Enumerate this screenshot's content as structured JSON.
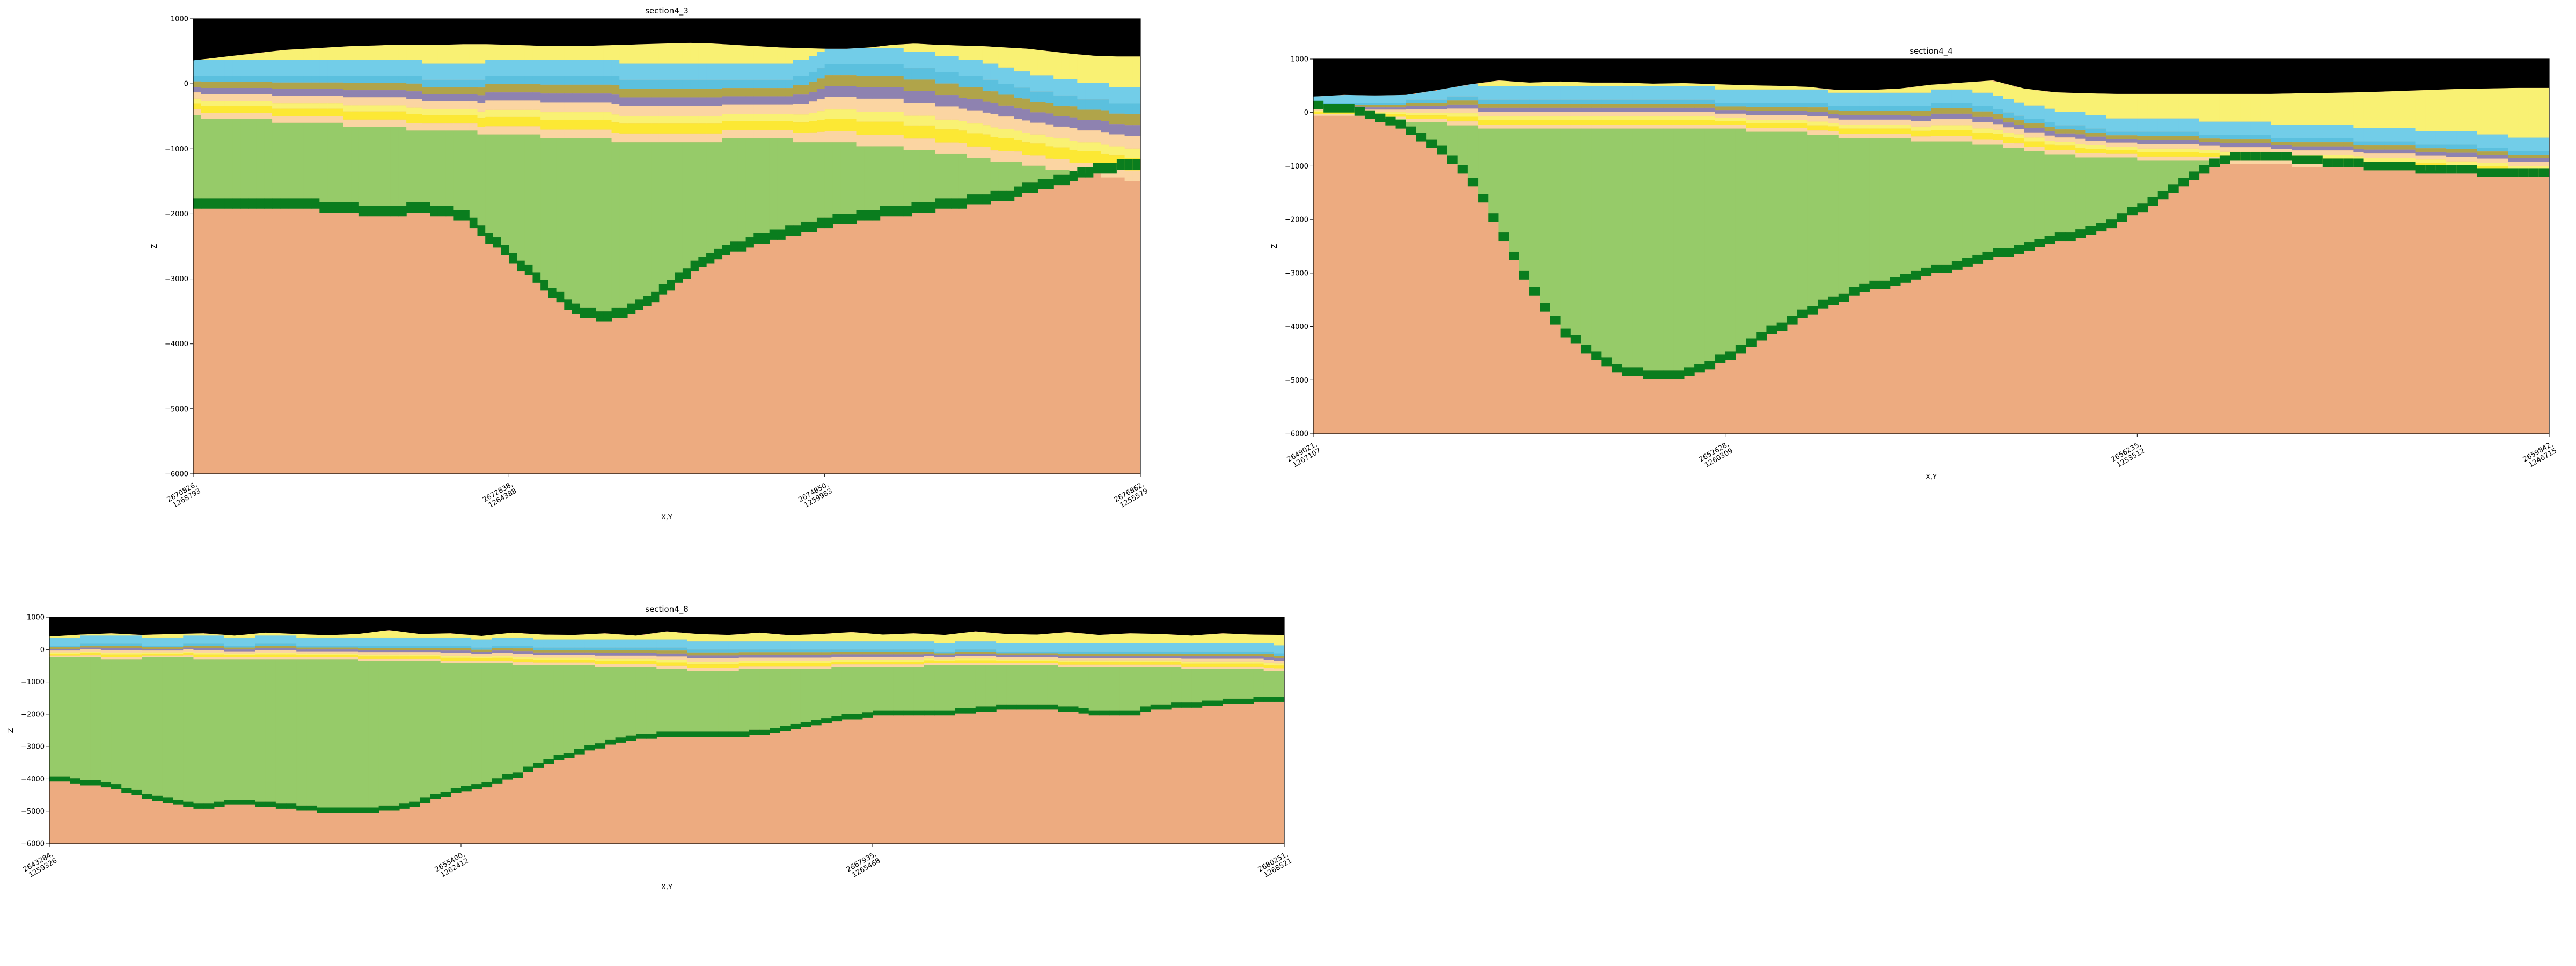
{
  "chart_data": [
    {
      "type": "heatmap",
      "title": "section4_3",
      "xlabel": "X,Y",
      "ylabel": "Z",
      "ylim": [
        -6000,
        1000
      ],
      "yticks": [
        1000,
        0,
        -1000,
        -2000,
        -3000,
        -4000,
        -5000,
        -6000
      ],
      "xtick_labels": [
        "2670826,\n1268793",
        "2672838,\n1264388",
        "2674850,\n1259983",
        "2676862,\n1255579"
      ],
      "profile_z": {
        "topography": [
          360,
          400,
          440,
          480,
          520,
          540,
          560,
          580,
          590,
          600,
          600,
          600,
          610,
          610,
          600,
          590,
          580,
          580,
          590,
          600,
          610,
          620,
          630,
          620,
          600,
          580,
          560,
          550,
          540,
          540,
          560,
          600,
          620,
          600,
          590,
          580,
          560,
          540,
          500,
          460,
          430,
          420,
          420
        ],
        "light_blue_bottom": [
          100,
          110,
          120,
          130,
          140,
          140,
          130,
          120,
          110,
          100,
          90,
          80,
          80,
          90,
          100,
          110,
          120,
          110,
          100,
          90,
          80,
          70,
          60,
          60,
          60,
          70,
          80,
          100,
          300,
          300,
          300,
          280,
          250,
          200,
          150,
          80,
          0,
          -80,
          -150,
          -200,
          -250,
          -280,
          -300
        ],
        "green_top": [
          -500,
          -520,
          -540,
          -560,
          -580,
          -600,
          -620,
          -640,
          -660,
          -680,
          -700,
          -720,
          -740,
          -760,
          -780,
          -800,
          -820,
          -840,
          -860,
          -880,
          -900,
          -900,
          -900,
          -880,
          -860,
          -840,
          -860,
          -880,
          -900,
          -920,
          -950,
          -980,
          -1010,
          -1050,
          -1100,
          -1150,
          -1200,
          -1250,
          -1300,
          -1350,
          -1400,
          -1450,
          -1500
        ],
        "basement_top": [
          -1900,
          -1910,
          -1930,
          -1950,
          -1940,
          -1930,
          -1960,
          -2000,
          -2050,
          -2020,
          -2000,
          -2020,
          -2100,
          -2400,
          -2700,
          -3000,
          -3300,
          -3550,
          -3650,
          -3600,
          -3450,
          -3200,
          -2950,
          -2750,
          -2600,
          -2480,
          -2400,
          -2300,
          -2200,
          -2150,
          -2100,
          -2050,
          -2000,
          -1950,
          -1900,
          -1850,
          -1800,
          -1700,
          -1600,
          -1500,
          -1400,
          -1350,
          -1300
        ]
      }
    },
    {
      "type": "heatmap",
      "title": "section4_4",
      "xlabel": "X,Y",
      "ylabel": "Z",
      "ylim": [
        -6000,
        1000
      ],
      "yticks": [
        1000,
        0,
        -1000,
        -2000,
        -3000,
        -4000,
        -5000,
        -6000
      ],
      "xtick_labels": [
        "2649021,\n1267107",
        "2652628,\n1260309",
        "2656235,\n1253512",
        "2659842,\n1246715"
      ],
      "profile_z": {
        "topography": [
          300,
          330,
          320,
          330,
          420,
          520,
          600,
          560,
          580,
          560,
          560,
          540,
          550,
          530,
          510,
          500,
          480,
          420,
          420,
          450,
          520,
          560,
          600,
          450,
          380,
          360,
          350,
          350,
          350,
          350,
          350,
          350,
          360,
          370,
          380,
          400,
          420,
          440,
          450,
          460,
          460
        ],
        "light_blue_bottom": [
          200,
          200,
          200,
          210,
          260,
          280,
          250,
          250,
          260,
          250,
          240,
          230,
          220,
          210,
          200,
          200,
          200,
          100,
          100,
          110,
          150,
          180,
          100,
          -100,
          -200,
          -280,
          -350,
          -380,
          -380,
          -400,
          -420,
          -450,
          -480,
          -500,
          -520,
          -550,
          -580,
          -600,
          -650,
          -700,
          -750
        ],
        "green_top": [
          -50,
          -80,
          -100,
          -150,
          -200,
          -250,
          -300,
          -320,
          -330,
          -330,
          -320,
          -310,
          -300,
          -310,
          -330,
          -350,
          -380,
          -450,
          -480,
          -500,
          -530,
          -560,
          -600,
          -700,
          -780,
          -820,
          -850,
          -880,
          -900,
          -920,
          -950,
          -980,
          -1000,
          -1030,
          -1050,
          -1080,
          -1100,
          -1120,
          -1150,
          -1180,
          -1200
        ],
        "basement_top": [
          50,
          0,
          -150,
          -350,
          -700,
          -1200,
          -2200,
          -3300,
          -4100,
          -4600,
          -4900,
          -5000,
          -4950,
          -4750,
          -4450,
          -4100,
          -3800,
          -3550,
          -3350,
          -3200,
          -3050,
          -2900,
          -2750,
          -2600,
          -2450,
          -2300,
          -2100,
          -1800,
          -1450,
          -1050,
          -900,
          -900,
          -950,
          -1000,
          -1050,
          -1100,
          -1120,
          -1150,
          -1180,
          -1200,
          -1200
        ]
      }
    },
    {
      "type": "heatmap",
      "title": "section4_8",
      "xlabel": "X,Y",
      "ylabel": "Z",
      "ylim": [
        -6000,
        1000
      ],
      "yticks": [
        1000,
        0,
        -1000,
        -2000,
        -3000,
        -4000,
        -5000,
        -6000
      ],
      "xtick_labels": [
        "2643284,\n1259326",
        "2655400,\n1262412",
        "2667935,\n1265468",
        "2680251,\n1268521"
      ],
      "profile_z": {
        "topography": [
          400,
          460,
          500,
          450,
          480,
          500,
          430,
          520,
          480,
          440,
          480,
          600,
          480,
          500,
          420,
          520,
          460,
          450,
          500,
          430,
          560,
          480,
          450,
          520,
          440,
          480,
          540,
          460,
          500,
          450,
          560,
          480,
          460,
          540,
          450,
          500,
          480,
          430,
          500,
          460,
          450
        ],
        "light_blue_bottom": [
          100,
          150,
          200,
          150,
          120,
          200,
          100,
          180,
          150,
          120,
          100,
          150,
          100,
          120,
          80,
          100,
          80,
          60,
          90,
          40,
          80,
          20,
          0,
          20,
          -20,
          0,
          20,
          -30,
          0,
          -40,
          0,
          -60,
          -50,
          -30,
          -60,
          -40,
          -50,
          -80,
          -60,
          -80,
          -100
        ],
        "green_top": [
          -250,
          -260,
          -280,
          -270,
          -260,
          -280,
          -300,
          -320,
          -300,
          -310,
          -330,
          -350,
          -380,
          -400,
          -420,
          -450,
          -480,
          -500,
          -520,
          -540,
          -600,
          -650,
          -640,
          -620,
          -600,
          -580,
          -560,
          -540,
          -520,
          -500,
          -500,
          -500,
          -500,
          -520,
          -540,
          -560,
          -560,
          -580,
          -600,
          -620,
          -650
        ],
        "basement_top": [
          -4050,
          -4150,
          -4300,
          -4550,
          -4800,
          -4950,
          -4800,
          -4850,
          -4950,
          -5050,
          -5050,
          -5000,
          -4800,
          -4500,
          -4300,
          -4000,
          -3600,
          -3300,
          -3000,
          -2800,
          -2700,
          -2700,
          -2700,
          -2650,
          -2500,
          -2300,
          -2150,
          -2050,
          -2050,
          -2050,
          -1950,
          -1850,
          -1850,
          -1900,
          -2050,
          -2050,
          -1850,
          -1800,
          -1700,
          -1650,
          -1650
        ]
      }
    }
  ],
  "colors": {
    "topography_fill": "#000000",
    "sediment_yellow": "#f9f173",
    "light_blue": "#72cde8",
    "light_blue_dark": "#5bc0de",
    "khaki": "#b0a44a",
    "lavender": "#8e82b0",
    "peach_band": "#fbd5a2",
    "bright_yellow": "#fce834",
    "green": "#96cb69",
    "dark_green": "#0a7d1e",
    "basement": "#edab80"
  }
}
